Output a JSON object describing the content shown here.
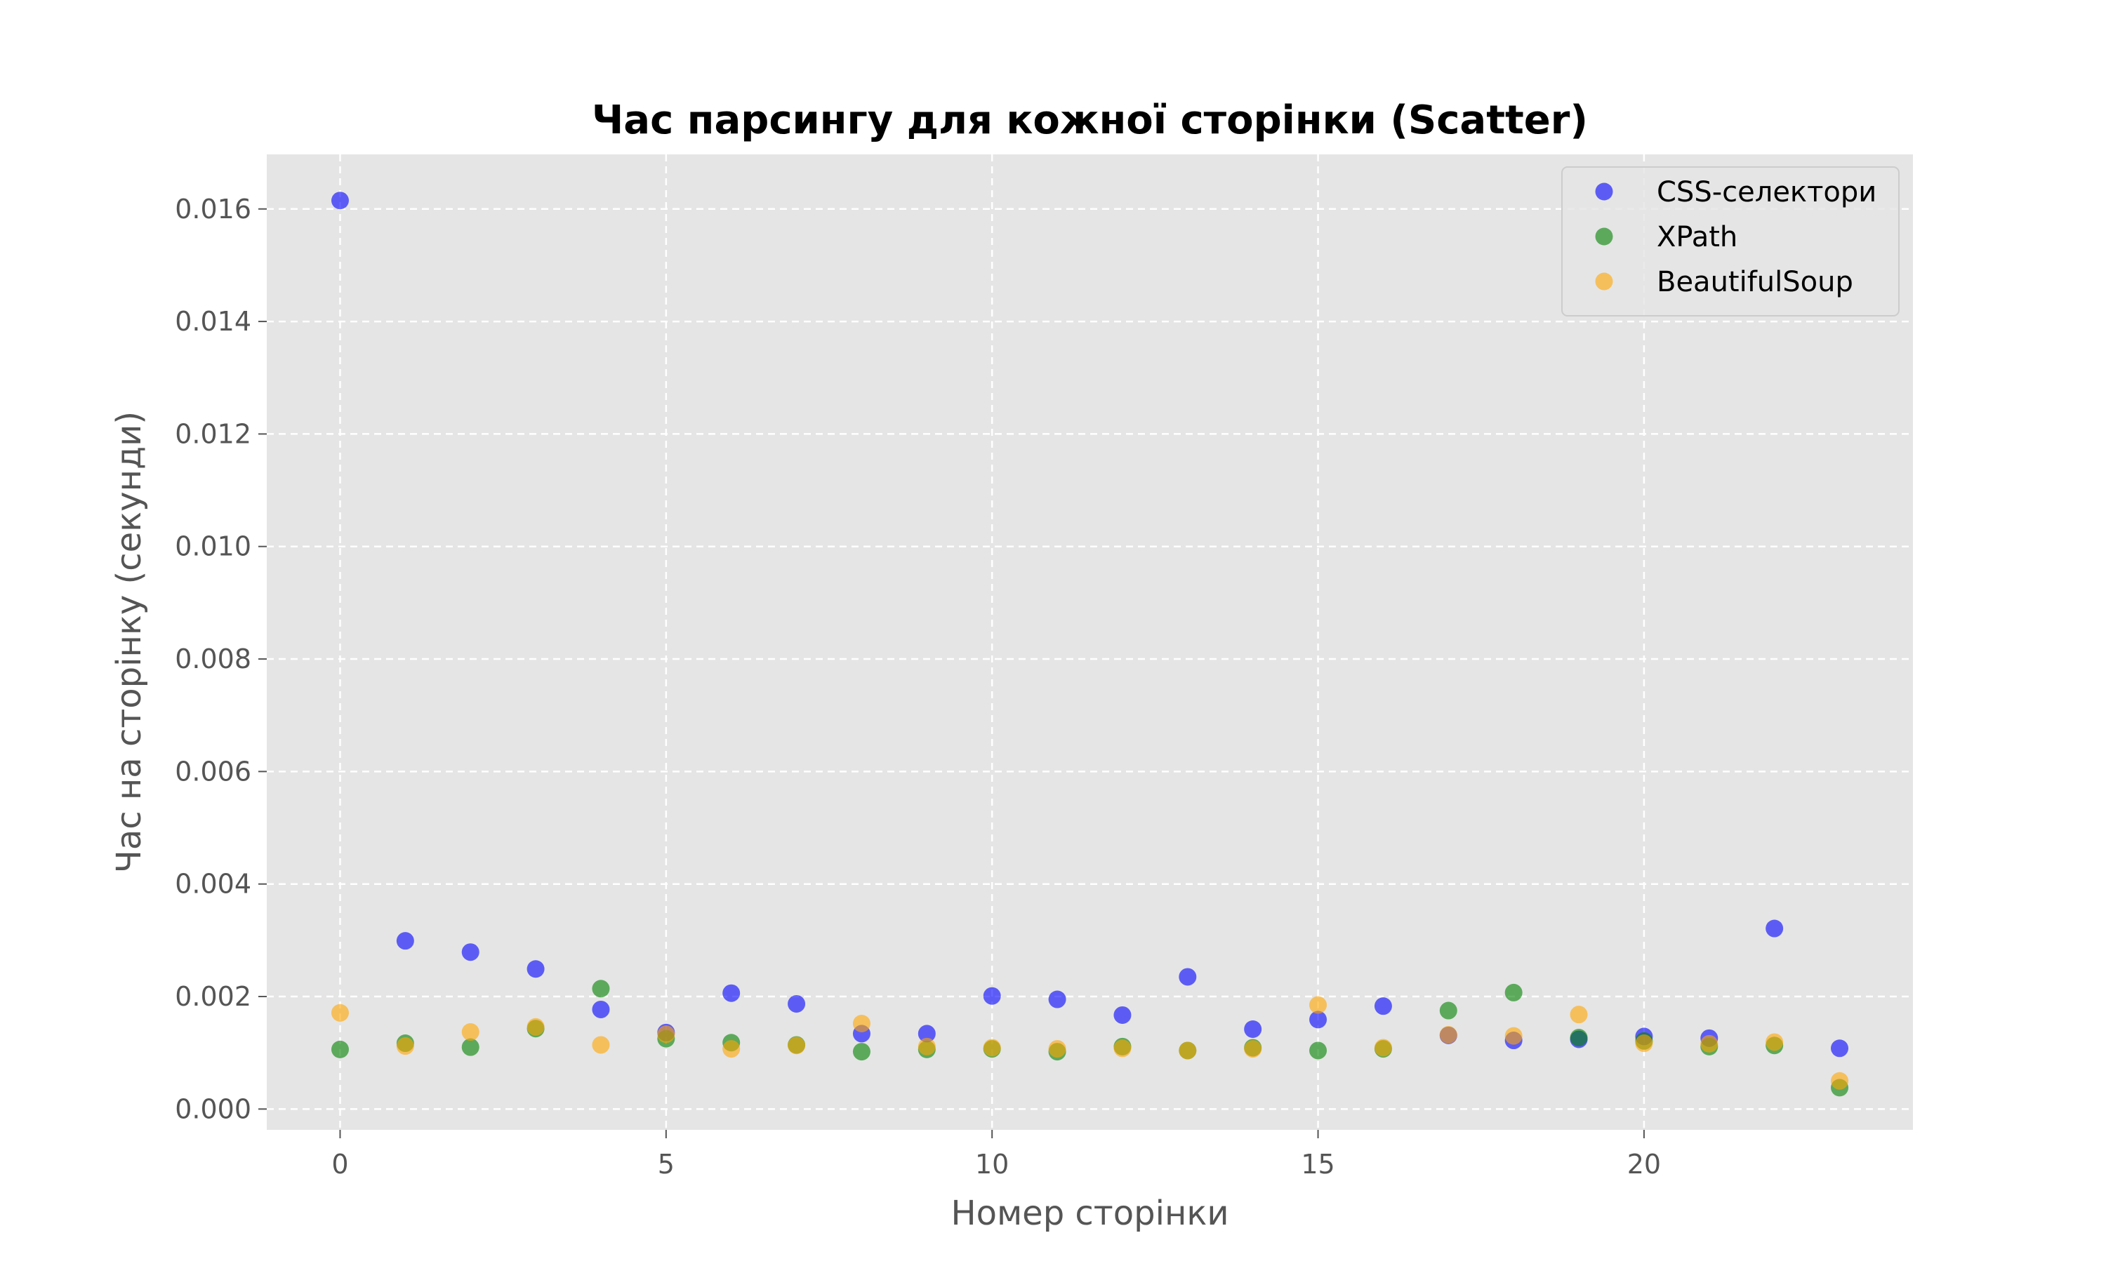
{
  "chart_data": {
    "type": "scatter",
    "title": "Час парсингу для кожної сторінки (Scatter)",
    "xlabel": "Номер сторінки",
    "ylabel": "Час на сторінку (секунди)",
    "xlim": [
      -1.125,
      24.125
    ],
    "ylim": [
      -0.00037,
      0.01697
    ],
    "xticks": [
      0,
      5,
      10,
      15,
      20
    ],
    "xtick_labels": [
      "0",
      "5",
      "10",
      "15",
      "20"
    ],
    "yticks": [
      0.0,
      0.002,
      0.004,
      0.006,
      0.008,
      0.01,
      0.012,
      0.014,
      0.016
    ],
    "ytick_labels": [
      "0.000",
      "0.002",
      "0.004",
      "0.006",
      "0.008",
      "0.010",
      "0.012",
      "0.014",
      "0.016"
    ],
    "grid": true,
    "legend_position": "top-right",
    "x": [
      0,
      1,
      2,
      3,
      4,
      5,
      6,
      7,
      8,
      9,
      10,
      11,
      12,
      13,
      14,
      15,
      16,
      17,
      18,
      19,
      20,
      21,
      22,
      23
    ],
    "series": [
      {
        "name": "CSS-селектори",
        "color": "#0000ff",
        "values": [
          0.01615,
          0.00299,
          0.00279,
          0.00249,
          0.00177,
          0.00136,
          0.00206,
          0.00187,
          0.00134,
          0.00134,
          0.00201,
          0.00195,
          0.00167,
          0.00235,
          0.00142,
          0.00159,
          0.00183,
          0.00131,
          0.00122,
          0.00124,
          0.00129,
          0.00126,
          0.00321,
          0.00108
        ]
      },
      {
        "name": "XPath",
        "color": "#008000",
        "values": [
          0.00106,
          0.00117,
          0.0011,
          0.00143,
          0.00214,
          0.00125,
          0.00118,
          0.00114,
          0.00102,
          0.00106,
          0.00107,
          0.00102,
          0.00111,
          0.00104,
          0.00109,
          0.00104,
          0.00107,
          0.00175,
          0.00207,
          0.00127,
          0.00121,
          0.00111,
          0.00113,
          0.00038
        ]
      },
      {
        "name": "BeautifulSoup",
        "color": "#ffa500",
        "values": [
          0.00171,
          0.00112,
          0.00137,
          0.00146,
          0.00114,
          0.00133,
          0.00107,
          0.00113,
          0.00152,
          0.00111,
          0.00109,
          0.00107,
          0.00108,
          0.00104,
          0.00107,
          0.00185,
          0.00109,
          0.00132,
          0.0013,
          0.00168,
          0.00117,
          0.00116,
          0.00119,
          0.0005
        ]
      }
    ]
  }
}
